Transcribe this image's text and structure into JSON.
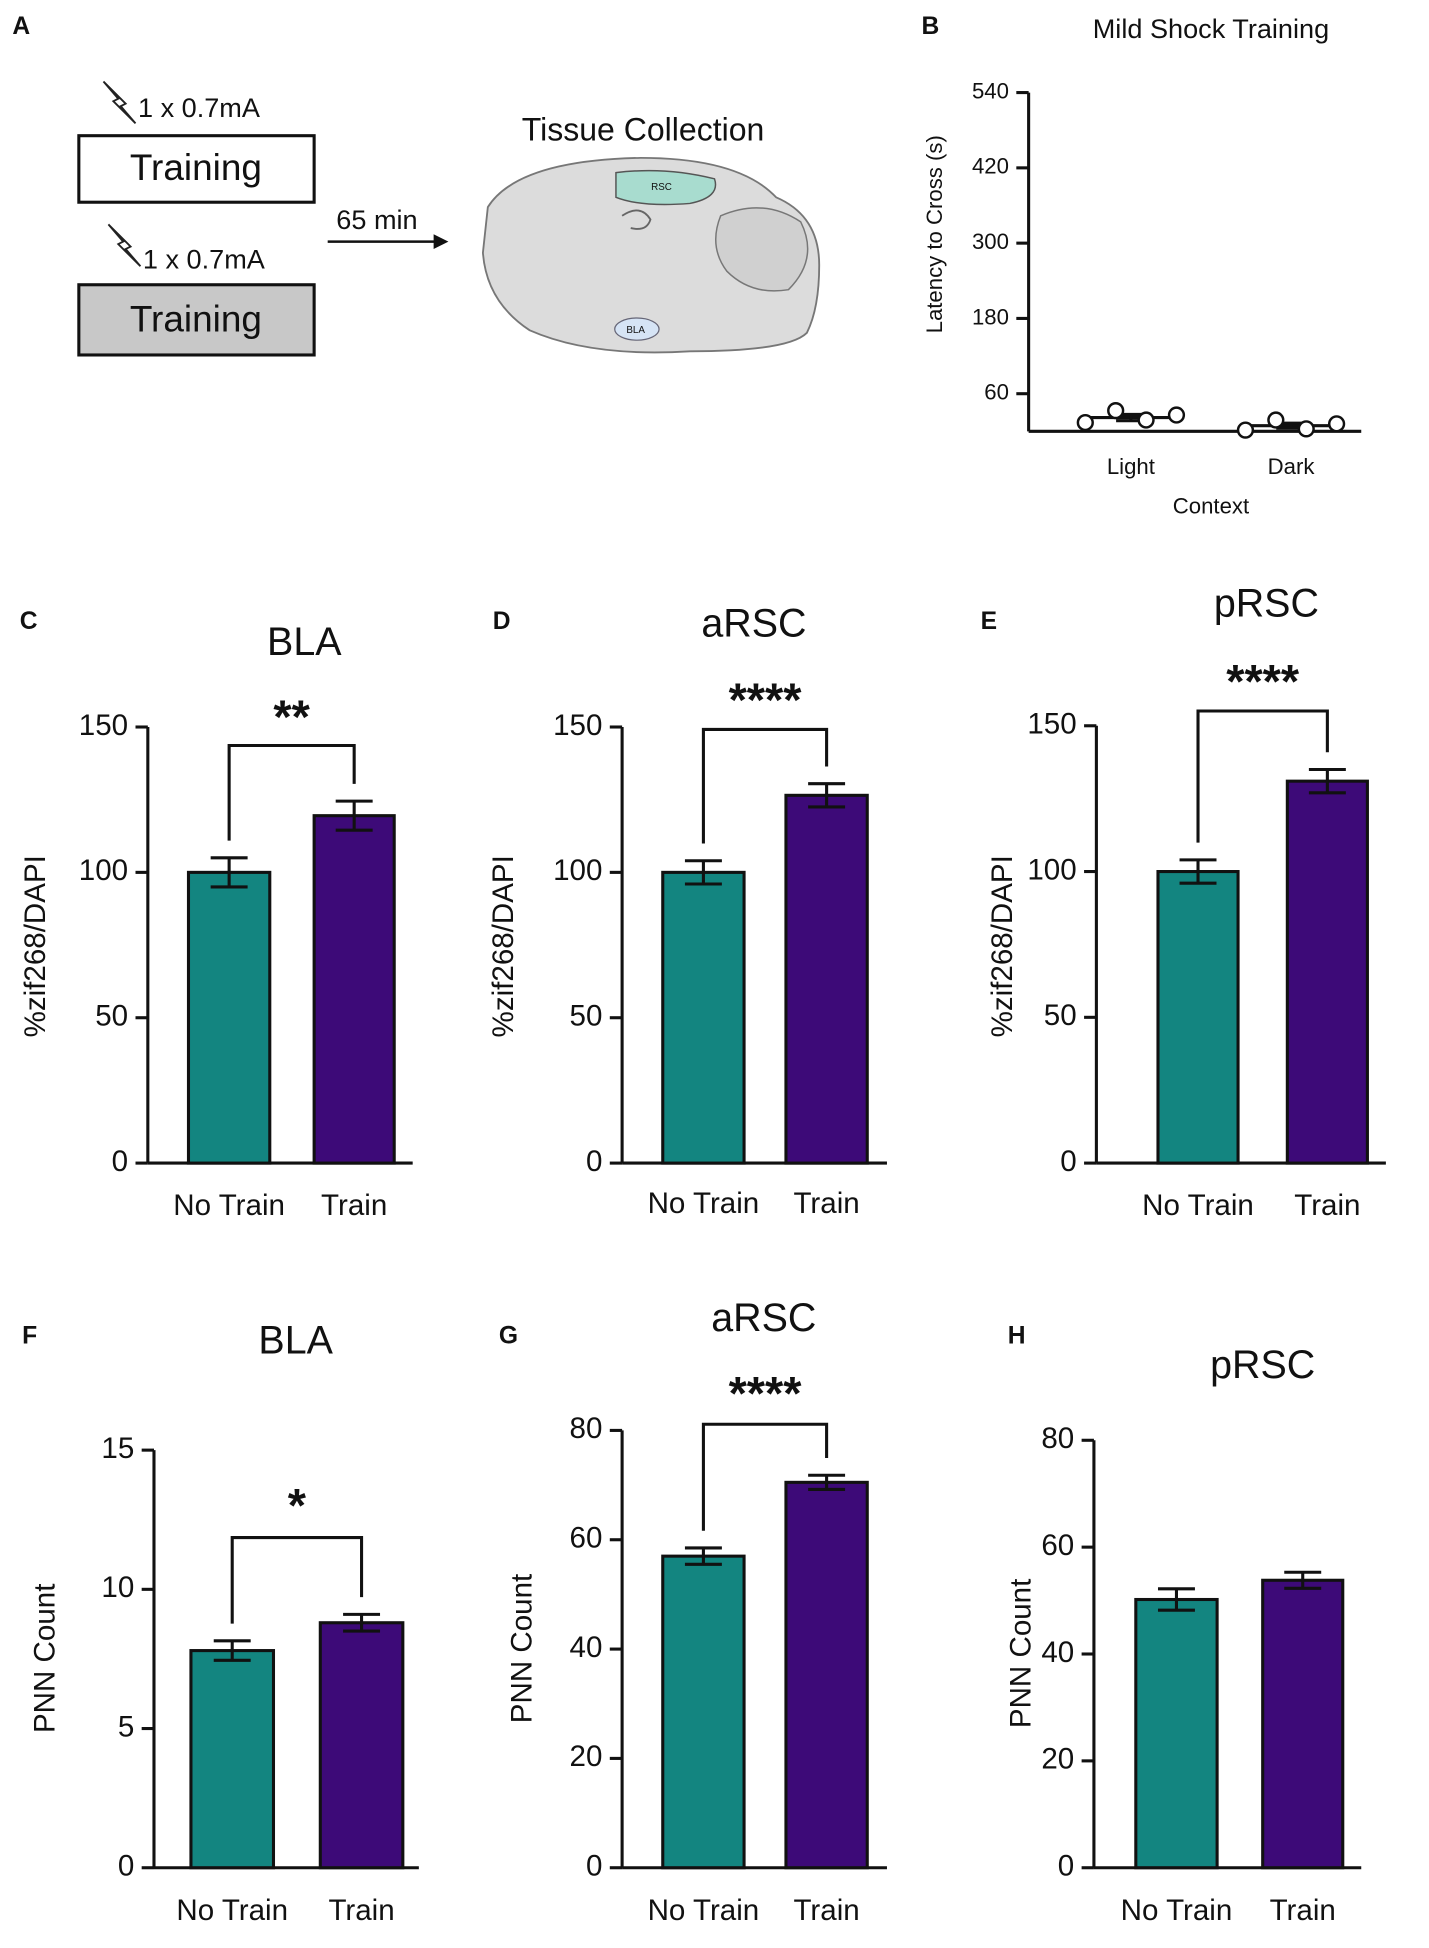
{
  "panel_a": {
    "letter": "A",
    "shock1": "1 x 0.7mA",
    "training1": "Training",
    "shock2": "1 x 0.7mA",
    "training2": "Training",
    "delay": "65 min",
    "collection": "Tissue Collection",
    "rsc": "RSC",
    "bla": "BLA"
  },
  "chart_data": [
    {
      "type": "dot",
      "panel": "B",
      "title": "Mild Shock Training",
      "ylabel": "Latency to Cross (s)",
      "xlabel": "Context",
      "categories": [
        "Light",
        "Dark"
      ],
      "points": [
        [
          14,
          33,
          18,
          26
        ],
        [
          2,
          18,
          4,
          12
        ]
      ],
      "values": [
        22,
        9
      ],
      "errors": [
        5,
        4
      ],
      "ylim": [
        0,
        540
      ],
      "yticks": [
        60,
        180,
        300,
        420,
        540
      ]
    },
    {
      "type": "bar",
      "panel": "C",
      "title": "BLA",
      "ylabel": "%zif268/DAPI",
      "categories": [
        "No Train",
        "Train"
      ],
      "values": [
        100,
        119.5
      ],
      "errors": [
        5,
        5
      ],
      "colors": [
        "#138580",
        "#3d0a78"
      ],
      "ylim": [
        0,
        150
      ],
      "yticks": [
        0,
        50,
        100,
        150
      ],
      "significance": "**"
    },
    {
      "type": "bar",
      "panel": "D",
      "title": "aRSC",
      "ylabel": "%zif268/DAPI",
      "categories": [
        "No Train",
        "Train"
      ],
      "values": [
        100,
        126.5
      ],
      "errors": [
        4,
        4
      ],
      "colors": [
        "#138580",
        "#3d0a78"
      ],
      "ylim": [
        0,
        150
      ],
      "yticks": [
        0,
        50,
        100,
        150
      ],
      "significance": "****"
    },
    {
      "type": "bar",
      "panel": "E",
      "title": "pRSC",
      "ylabel": "%zif268/DAPI",
      "categories": [
        "No Train",
        "Train"
      ],
      "values": [
        100,
        131
      ],
      "errors": [
        4,
        4
      ],
      "colors": [
        "#138580",
        "#3d0a78"
      ],
      "ylim": [
        0,
        150
      ],
      "yticks": [
        0,
        50,
        100,
        150
      ],
      "significance": "****"
    },
    {
      "type": "bar",
      "panel": "F",
      "title": "BLA",
      "ylabel": "PNN Count",
      "categories": [
        "No Train",
        "Train"
      ],
      "values": [
        7.8,
        8.8
      ],
      "errors": [
        0.35,
        0.3
      ],
      "colors": [
        "#138580",
        "#3d0a78"
      ],
      "ylim": [
        0,
        15
      ],
      "yticks": [
        0,
        5,
        10,
        15
      ],
      "significance": "*"
    },
    {
      "type": "bar",
      "panel": "G",
      "title": "aRSC",
      "ylabel": "PNN Count",
      "categories": [
        "No Train",
        "Train"
      ],
      "values": [
        57,
        70.5
      ],
      "errors": [
        1.5,
        1.3
      ],
      "colors": [
        "#138580",
        "#3d0a78"
      ],
      "ylim": [
        0,
        80
      ],
      "yticks": [
        0,
        20,
        40,
        60,
        80
      ],
      "significance": "****"
    },
    {
      "type": "bar",
      "panel": "H",
      "title": "pRSC",
      "ylabel": "PNN Count",
      "categories": [
        "No Train",
        "Train"
      ],
      "values": [
        50.2,
        53.8
      ],
      "errors": [
        2,
        1.5
      ],
      "colors": [
        "#138580",
        "#3d0a78"
      ],
      "ylim": [
        0,
        80
      ],
      "yticks": [
        0,
        20,
        40,
        60,
        80
      ]
    }
  ]
}
